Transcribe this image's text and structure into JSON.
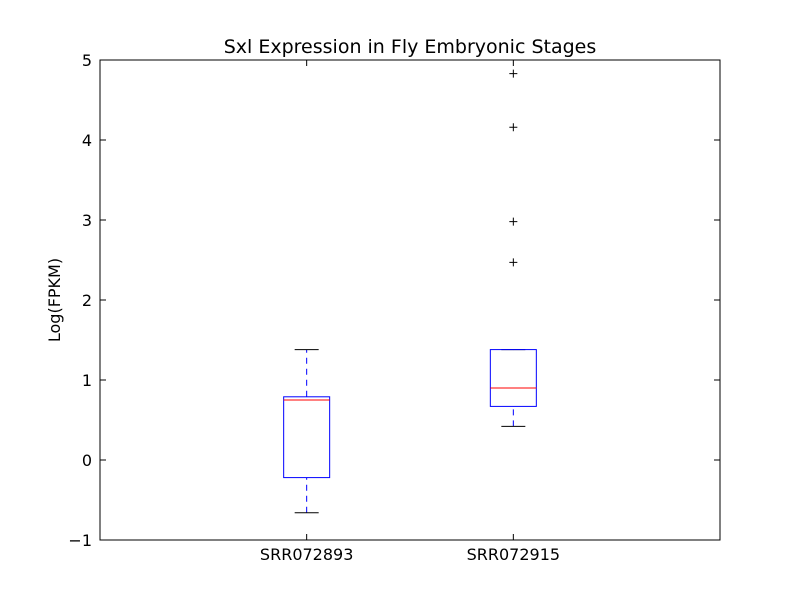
{
  "chart_data": {
    "type": "box",
    "title": "Sxl Expression in Fly Embryonic Stages",
    "xlabel": "",
    "ylabel": "Log(FPKM)",
    "ylim": [
      -1,
      5
    ],
    "yticks": [
      -1,
      0,
      1,
      2,
      3,
      4,
      5
    ],
    "ytick_labels": [
      "−1",
      "0",
      "1",
      "2",
      "3",
      "4",
      "5"
    ],
    "grid": false,
    "categories": [
      "SRR072893",
      "SRR072915"
    ],
    "boxes": [
      {
        "label": "SRR072893",
        "whisker_low": -0.66,
        "q1": -0.22,
        "median": 0.75,
        "q3": 0.79,
        "whisker_high": 1.38,
        "outliers": []
      },
      {
        "label": "SRR072915",
        "whisker_low": 0.42,
        "q1": 0.67,
        "median": 0.9,
        "q3": 1.38,
        "whisker_high": 1.38,
        "outliers": [
          2.47,
          2.98,
          4.16,
          4.83
        ]
      }
    ],
    "colors": {
      "box": "#0000ff",
      "median": "#ff0000",
      "whisker": "#0000ff",
      "cap": "#000000",
      "outlier": "#000000",
      "axes": "#000000"
    }
  }
}
